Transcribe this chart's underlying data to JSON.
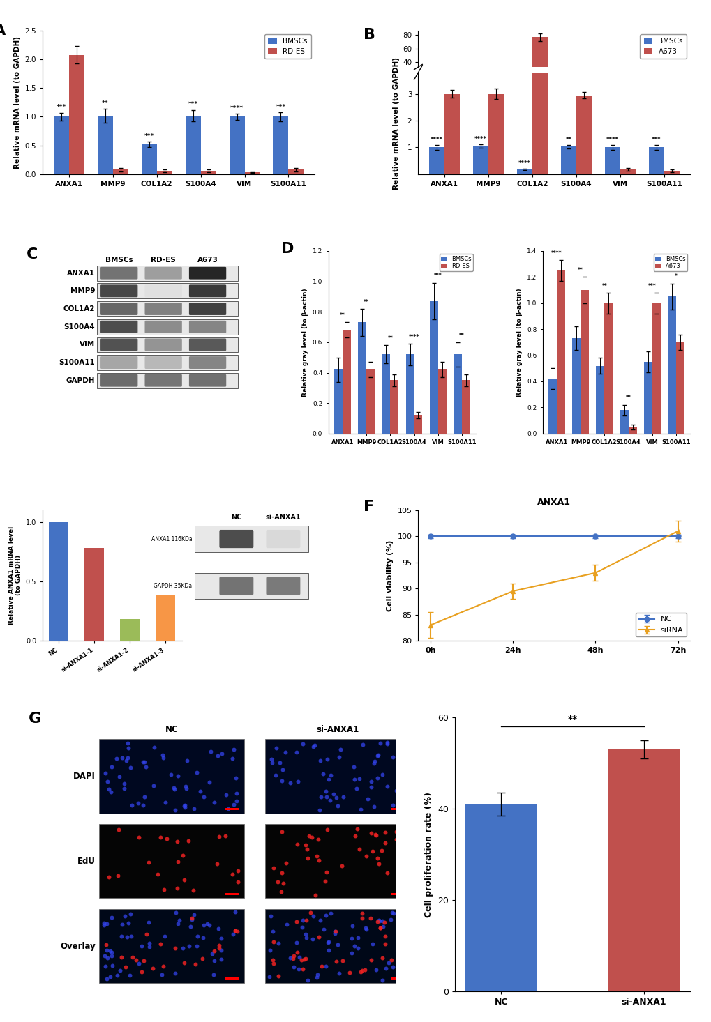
{
  "panel_A": {
    "genes": [
      "ANXA1",
      "MMP9",
      "COL1A2",
      "S100A4",
      "VIM",
      "S100A11"
    ],
    "BMSCs": [
      1.0,
      1.02,
      0.52,
      1.02,
      1.0,
      1.0
    ],
    "RD_ES": [
      2.08,
      0.08,
      0.06,
      0.06,
      0.03,
      0.08
    ],
    "BMSCs_err": [
      0.07,
      0.12,
      0.05,
      0.1,
      0.05,
      0.08
    ],
    "RD_ES_err": [
      0.15,
      0.03,
      0.02,
      0.02,
      0.01,
      0.03
    ],
    "significance": [
      "***",
      "**",
      "***",
      "***",
      "****",
      "***"
    ],
    "sig_on_bmsc": [
      true,
      true,
      true,
      true,
      true,
      true
    ],
    "ylabel": "Relative mRNA level (to GAPDH)",
    "ylim": [
      0,
      2.5
    ],
    "yticks": [
      0.0,
      0.5,
      1.0,
      1.5,
      2.0,
      2.5
    ]
  },
  "panel_B": {
    "genes": [
      "ANXA1",
      "MMP9",
      "COL1A2",
      "S100A4",
      "VIM",
      "S100A11"
    ],
    "BMSCs": [
      1.0,
      1.05,
      0.18,
      1.03,
      1.0,
      1.0
    ],
    "A673": [
      3.0,
      3.0,
      76.5,
      2.95,
      0.18,
      0.12
    ],
    "BMSCs_err": [
      0.08,
      0.07,
      0.03,
      0.07,
      0.1,
      0.08
    ],
    "A673_err": [
      0.15,
      0.2,
      5.5,
      0.12,
      0.06,
      0.05
    ],
    "significance": [
      "****",
      "****",
      "****",
      "**",
      "****",
      "***"
    ],
    "ylabel": "Relative mRNA level (to GAPDH)",
    "yticks_lower": [
      1,
      2,
      3
    ],
    "yticks_upper": [
      40,
      60,
      80
    ],
    "ylim_lower": [
      0,
      3.8
    ],
    "ylim_upper": [
      33,
      86
    ]
  },
  "panel_D_left": {
    "genes": [
      "ANXA1",
      "MMP9",
      "COL1A2",
      "S100A4",
      "VIM",
      "S100A11"
    ],
    "BMSCs": [
      0.42,
      0.73,
      0.52,
      0.52,
      0.87,
      0.52
    ],
    "RD_ES": [
      0.68,
      0.42,
      0.35,
      0.12,
      0.42,
      0.35
    ],
    "BMSCs_err": [
      0.08,
      0.09,
      0.06,
      0.07,
      0.12,
      0.08
    ],
    "RD_ES_err": [
      0.05,
      0.05,
      0.04,
      0.02,
      0.05,
      0.04
    ],
    "significance": [
      "**",
      "**",
      "**",
      "****",
      "***",
      "**"
    ],
    "ylabel": "Relative gray level (to β-actin)",
    "ylim": [
      0,
      1.2
    ],
    "yticks": [
      0.0,
      0.2,
      0.4,
      0.6,
      0.8,
      1.0,
      1.2
    ]
  },
  "panel_D_right": {
    "genes": [
      "ANXA1",
      "MMP9",
      "COL1A2",
      "S100A4",
      "VIM",
      "S100A11"
    ],
    "BMSCs": [
      0.42,
      0.73,
      0.52,
      0.18,
      0.55,
      1.05
    ],
    "A673": [
      1.25,
      1.1,
      1.0,
      0.05,
      1.0,
      0.7
    ],
    "BMSCs_err": [
      0.08,
      0.09,
      0.06,
      0.04,
      0.08,
      0.1
    ],
    "A673_err": [
      0.08,
      0.1,
      0.08,
      0.02,
      0.08,
      0.06
    ],
    "significance": [
      "****",
      "**",
      "**",
      "**",
      "***",
      "*"
    ],
    "ylabel": "Relative gray level (to β-actin)",
    "ylim": [
      0,
      1.4
    ],
    "yticks": [
      0.0,
      0.2,
      0.4,
      0.6,
      0.8,
      1.0,
      1.2,
      1.4
    ]
  },
  "panel_E_bar": {
    "groups": [
      "NC",
      "si-ANXA1-1",
      "si-ANXA1-2",
      "si-ANXA1-3"
    ],
    "values": [
      1.0,
      0.78,
      0.18,
      0.38
    ],
    "colors": [
      "#4472C4",
      "#C0504D",
      "#9BBB59",
      "#F79646"
    ],
    "ylabel": "Relative ANXA1 mRNA level\n(to GAPDH)",
    "ylim": [
      0,
      1.1
    ],
    "yticks": [
      0.0,
      0.5,
      1.0
    ]
  },
  "panel_F": {
    "timepoints": [
      "0h",
      "24h",
      "48h",
      "72h"
    ],
    "NC": [
      100,
      100,
      100,
      100
    ],
    "siRNA": [
      83.0,
      89.5,
      93.0,
      101.0
    ],
    "NC_err": [
      0.3,
      0.3,
      0.3,
      0.3
    ],
    "siRNA_err": [
      2.5,
      1.5,
      1.5,
      2.0
    ],
    "title": "ANXA1",
    "ylabel": "Cell viability (%)",
    "ylim": [
      80,
      105
    ],
    "yticks": [
      80,
      85,
      90,
      95,
      100,
      105
    ]
  },
  "panel_G_bar": {
    "groups": [
      "NC",
      "si-ANXA1"
    ],
    "values": [
      41.0,
      53.0
    ],
    "errors": [
      2.5,
      2.0
    ],
    "colors": [
      "#4472C4",
      "#C0504D"
    ],
    "ylabel": "Cell proliferation rate (%)",
    "ylim": [
      0,
      60
    ],
    "yticks": [
      0,
      20,
      40,
      60
    ],
    "significance": "**"
  },
  "colors": {
    "BMSCs": "#4472C4",
    "RD_ES": "#C0504D",
    "A673": "#C0504D"
  },
  "background_color": "#ffffff"
}
